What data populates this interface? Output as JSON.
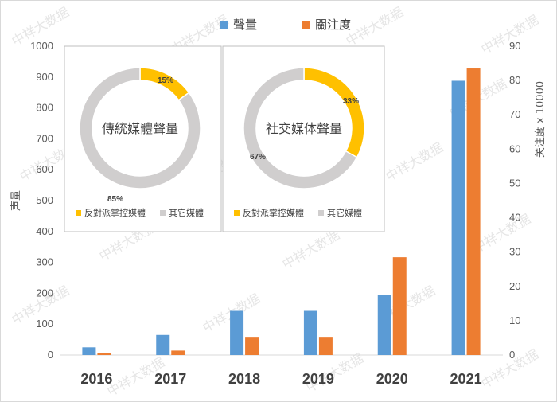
{
  "watermark_text": "中祥大数据",
  "legend": {
    "series1": {
      "label": "聲量",
      "color": "#5b9bd5"
    },
    "series2": {
      "label": "關注度",
      "color": "#ed7d31"
    }
  },
  "axes": {
    "left_label": "声量",
    "right_label": "关注度 x 10000"
  },
  "chart_data": [
    {
      "type": "bar",
      "categories": [
        "2016",
        "2017",
        "2018",
        "2019",
        "2020",
        "2021"
      ],
      "series": [
        {
          "name": "聲量",
          "axis": "left",
          "color": "#5b9bd5",
          "values": [
            25,
            65,
            143,
            143,
            195,
            888
          ]
        },
        {
          "name": "關注度",
          "axis": "right",
          "color": "#ed7d31",
          "values": [
            0.5,
            1.3,
            5.3,
            5.3,
            28.5,
            83.5
          ]
        }
      ],
      "ylim_left": [
        0,
        1000
      ],
      "ylim_right": [
        0,
        90
      ],
      "yticks_left": [
        0,
        100,
        200,
        300,
        400,
        500,
        600,
        700,
        800,
        900,
        1000
      ],
      "yticks_right": [
        0,
        10,
        20,
        30,
        40,
        50,
        60,
        70,
        80,
        90
      ],
      "ylabel": "声量",
      "ylabel_right": "关注度 x 10000",
      "legend_position": "top-center",
      "grid": false
    },
    {
      "type": "pie",
      "title": "傳統媒體聲量",
      "labels": [
        "反對派掌控媒體",
        "其它媒體"
      ],
      "values": [
        15,
        85
      ],
      "value_labels": [
        "15%",
        "85%"
      ],
      "colors": [
        "#ffc000",
        "#d0cece"
      ],
      "legend_position": "bottom"
    },
    {
      "type": "pie",
      "title": "社交媒体聲量",
      "labels": [
        "反對派掌控媒體",
        "其它媒體"
      ],
      "values": [
        33,
        67
      ],
      "value_labels": [
        "33%",
        "67%"
      ],
      "colors": [
        "#ffc000",
        "#d0cece"
      ],
      "legend_position": "bottom"
    }
  ]
}
